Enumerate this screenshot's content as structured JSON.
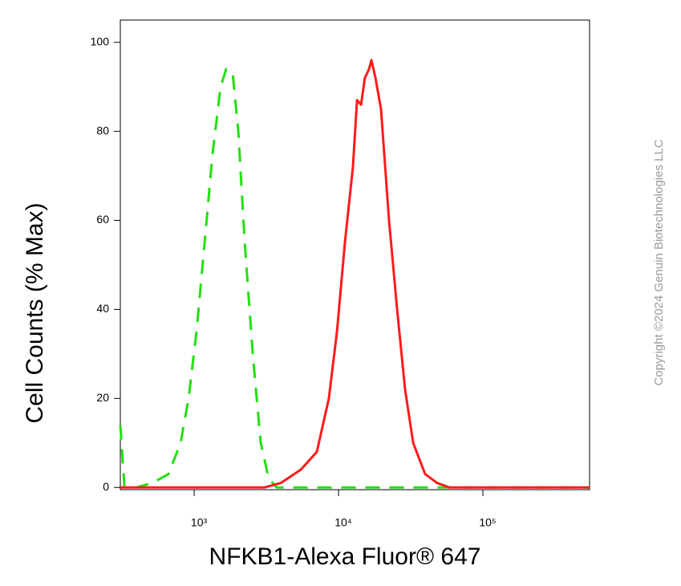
{
  "chart_data": {
    "type": "line",
    "xlabel": "NFKB1-Alexa Fluor® 647",
    "ylabel": "Cell Counts (% Max)",
    "copyright": "Copyright ©2024 Genuin Biotechnologies LLC",
    "xscale": "log",
    "xlim": [
      308,
      548000
    ],
    "ylim": [
      -0.5,
      105
    ],
    "xticks": [
      {
        "value": 1000,
        "label": "10³"
      },
      {
        "value": 10000,
        "label": "10⁴"
      },
      {
        "value": 100000,
        "label": "10⁵"
      }
    ],
    "yticks": [
      0,
      20,
      40,
      60,
      80,
      100
    ],
    "series": [
      {
        "color": "#22e010",
        "line_style": "dashed",
        "x": [
          308,
          329,
          398,
          514,
          664,
          805,
          915,
          1039,
          1181,
          1342,
          1525,
          1668,
          1848,
          2021,
          2240,
          2545,
          2893,
          3286,
          3734,
          548000
        ],
        "values": [
          14,
          0,
          0,
          1,
          3,
          10,
          20,
          35,
          55,
          75,
          90,
          94,
          93,
          80,
          55,
          30,
          10,
          2,
          0,
          0
        ]
      },
      {
        "color": "#ff1a1a",
        "line_style": "solid",
        "x": [
          308,
          3082,
          3981,
          5484,
          7079,
          8577,
          9750,
          11070,
          12590,
          13430,
          14310,
          15230,
          16270,
          16900,
          18030,
          19690,
          22390,
          25470,
          28910,
          32890,
          39810,
          48210,
          58480,
          548000
        ],
        "values": [
          0,
          0,
          1,
          4,
          8,
          20,
          35,
          55,
          72,
          87,
          86,
          92,
          94,
          96,
          92,
          85,
          60,
          40,
          22,
          10,
          3,
          1,
          0,
          0
        ]
      }
    ]
  }
}
